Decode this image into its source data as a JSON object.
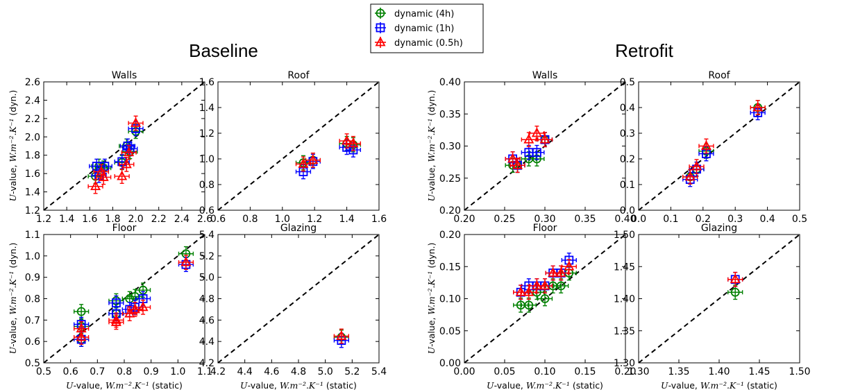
{
  "legend": [
    {
      "label": "dynamic (4h)",
      "color": "#008000",
      "marker": "circle"
    },
    {
      "label": "dynamic (1h)",
      "color": "#0000ff",
      "marker": "square"
    },
    {
      "label": "dynamic (0.5h)",
      "color": "#ff0000",
      "marker": "triangle"
    }
  ],
  "groups": [
    {
      "title": "Baseline"
    },
    {
      "title": "Retrofit"
    }
  ],
  "axis_labels": {
    "y_prefix": "U",
    "y_mid": "-value, ",
    "y_math": "W.m⁻².K⁻¹",
    "y_suffix": " (dyn.)",
    "x_prefix": "U",
    "x_mid": "-value, ",
    "x_math": "W.m⁻².K⁻¹",
    "x_suffix": " (static)"
  },
  "chart_data": [
    {
      "type": "scatter",
      "group": "Baseline",
      "title": "Walls",
      "xlim": [
        1.2,
        2.6
      ],
      "ylim": [
        1.2,
        2.6
      ],
      "xticks": [
        "1.2",
        "1.4",
        "1.6",
        "1.8",
        "2.0",
        "2.2",
        "2.4",
        "2.6"
      ],
      "yticks": [
        "1.2",
        "1.4",
        "1.6",
        "1.8",
        "2.0",
        "2.2",
        "2.4",
        "2.6"
      ],
      "series": [
        {
          "name": "dynamic (4h)",
          "points": [
            [
              1.68,
              1.68
            ],
            [
              1.72,
              1.66
            ],
            [
              1.88,
              1.72
            ],
            [
              1.92,
              1.9
            ],
            [
              1.95,
              1.84
            ],
            [
              2.0,
              2.06
            ],
            [
              1.65,
              1.57
            ]
          ]
        },
        {
          "name": "dynamic (1h)",
          "points": [
            [
              1.66,
              1.68
            ],
            [
              1.73,
              1.68
            ],
            [
              1.88,
              1.73
            ],
            [
              1.93,
              1.9
            ],
            [
              1.95,
              1.87
            ],
            [
              2.0,
              2.09
            ],
            [
              1.68,
              1.58
            ]
          ]
        },
        {
          "name": "dynamic (0.5h)",
          "points": [
            [
              1.65,
              1.46
            ],
            [
              1.72,
              1.56
            ],
            [
              1.88,
              1.57
            ],
            [
              1.92,
              1.7
            ],
            [
              1.94,
              1.83
            ],
            [
              2.0,
              2.15
            ],
            [
              1.7,
              1.62
            ]
          ]
        }
      ]
    },
    {
      "type": "scatter",
      "group": "Baseline",
      "title": "Roof",
      "xlim": [
        0.6,
        1.6
      ],
      "ylim": [
        0.6,
        1.6
      ],
      "xticks": [
        "0.6",
        "0.8",
        "1.0",
        "1.2",
        "1.4",
        "1.6"
      ],
      "yticks": [
        "0.6",
        "0.8",
        "1.0",
        "1.2",
        "1.4",
        "1.6"
      ],
      "series": [
        {
          "name": "dynamic (4h)",
          "points": [
            [
              1.13,
              0.97
            ],
            [
              1.19,
              0.99
            ],
            [
              1.4,
              1.12
            ],
            [
              1.44,
              1.11
            ]
          ]
        },
        {
          "name": "dynamic (1h)",
          "points": [
            [
              1.13,
              0.9
            ],
            [
              1.19,
              0.98
            ],
            [
              1.4,
              1.09
            ],
            [
              1.44,
              1.07
            ]
          ]
        },
        {
          "name": "dynamic (0.5h)",
          "points": [
            [
              1.13,
              0.96
            ],
            [
              1.19,
              0.99
            ],
            [
              1.4,
              1.14
            ],
            [
              1.44,
              1.12
            ]
          ]
        }
      ]
    },
    {
      "type": "scatter",
      "group": "Retrofit",
      "title": "Walls",
      "xlim": [
        0.2,
        0.4
      ],
      "ylim": [
        0.2,
        0.4
      ],
      "xticks": [
        "0.20",
        "0.25",
        "0.30",
        "0.35",
        "0.40"
      ],
      "yticks": [
        "0.20",
        "0.25",
        "0.30",
        "0.35",
        "0.40"
      ],
      "series": [
        {
          "name": "dynamic (4h)",
          "points": [
            [
              0.26,
              0.27
            ],
            [
              0.266,
              0.27
            ],
            [
              0.28,
              0.28
            ],
            [
              0.29,
              0.28
            ],
            [
              0.3,
              0.31
            ]
          ]
        },
        {
          "name": "dynamic (1h)",
          "points": [
            [
              0.26,
              0.28
            ],
            [
              0.266,
              0.27
            ],
            [
              0.28,
              0.29
            ],
            [
              0.29,
              0.29
            ],
            [
              0.3,
              0.31
            ]
          ]
        },
        {
          "name": "dynamic (0.5h)",
          "points": [
            [
              0.26,
              0.28
            ],
            [
              0.266,
              0.27
            ],
            [
              0.28,
              0.31
            ],
            [
              0.29,
              0.32
            ],
            [
              0.3,
              0.31
            ]
          ]
        }
      ]
    },
    {
      "type": "scatter",
      "group": "Retrofit",
      "title": "Roof",
      "xlim": [
        0.0,
        0.5
      ],
      "ylim": [
        0.0,
        0.5
      ],
      "xticks": [
        "0.0",
        "0.1",
        "0.2",
        "0.3",
        "0.4",
        "0.5"
      ],
      "yticks": [
        "0.0",
        "0.1",
        "0.2",
        "0.3",
        "0.4",
        "0.5"
      ],
      "series": [
        {
          "name": "dynamic (4h)",
          "points": [
            [
              0.16,
              0.13
            ],
            [
              0.18,
              0.16
            ],
            [
              0.21,
              0.23
            ],
            [
              0.37,
              0.4
            ]
          ]
        },
        {
          "name": "dynamic (1h)",
          "points": [
            [
              0.16,
              0.12
            ],
            [
              0.18,
              0.16
            ],
            [
              0.21,
              0.22
            ],
            [
              0.37,
              0.38
            ]
          ]
        },
        {
          "name": "dynamic (0.5h)",
          "points": [
            [
              0.16,
              0.13
            ],
            [
              0.18,
              0.17
            ],
            [
              0.21,
              0.25
            ],
            [
              0.37,
              0.4
            ]
          ]
        }
      ]
    },
    {
      "type": "scatter",
      "group": "Baseline",
      "title": "Floor",
      "xlim": [
        0.5,
        1.1
      ],
      "ylim": [
        0.5,
        1.1
      ],
      "xticks": [
        "0.5",
        "0.6",
        "0.7",
        "0.8",
        "0.9",
        "1.0",
        "1.1"
      ],
      "yticks": [
        "0.5",
        "0.6",
        "0.7",
        "0.8",
        "0.9",
        "1.0",
        "1.1"
      ],
      "series": [
        {
          "name": "dynamic (4h)",
          "points": [
            [
              0.64,
              0.74
            ],
            [
              0.64,
              0.67
            ],
            [
              0.64,
              0.61
            ],
            [
              0.77,
              0.79
            ],
            [
              0.82,
              0.8
            ],
            [
              0.84,
              0.81
            ],
            [
              0.87,
              0.84
            ],
            [
              1.03,
              1.01
            ],
            [
              0.77,
              0.73
            ]
          ]
        },
        {
          "name": "dynamic (1h)",
          "points": [
            [
              0.64,
              0.68
            ],
            [
              0.64,
              0.61
            ],
            [
              0.77,
              0.73
            ],
            [
              0.82,
              0.75
            ],
            [
              0.84,
              0.76
            ],
            [
              0.87,
              0.8
            ],
            [
              1.03,
              0.96
            ],
            [
              0.77,
              0.78
            ]
          ]
        },
        {
          "name": "dynamic (0.5h)",
          "points": [
            [
              0.64,
              0.66
            ],
            [
              0.64,
              0.62
            ],
            [
              0.77,
              0.69
            ],
            [
              0.82,
              0.73
            ],
            [
              0.84,
              0.75
            ],
            [
              0.87,
              0.76
            ],
            [
              1.03,
              0.97
            ],
            [
              0.77,
              0.7
            ]
          ]
        }
      ]
    },
    {
      "type": "scatter",
      "group": "Baseline",
      "title": "Glazing",
      "xlim": [
        4.2,
        5.4
      ],
      "ylim": [
        4.2,
        5.4
      ],
      "xticks": [
        "4.2",
        "4.4",
        "4.6",
        "4.8",
        "5.0",
        "5.2",
        "5.4"
      ],
      "yticks": [
        "4.2",
        "4.4",
        "4.6",
        "4.8",
        "5.0",
        "5.2",
        "5.4"
      ],
      "series": [
        {
          "name": "dynamic (4h)",
          "points": [
            [
              5.12,
              4.44
            ]
          ]
        },
        {
          "name": "dynamic (1h)",
          "points": [
            [
              5.12,
              4.41
            ]
          ]
        },
        {
          "name": "dynamic (0.5h)",
          "points": [
            [
              5.12,
              4.45
            ]
          ]
        }
      ]
    },
    {
      "type": "scatter",
      "group": "Retrofit",
      "title": "Floor",
      "xlim": [
        0.0,
        0.2
      ],
      "ylim": [
        0.0,
        0.2
      ],
      "xticks": [
        "0.00",
        "0.05",
        "0.10",
        "0.15",
        "0.20"
      ],
      "yticks": [
        "0.00",
        "0.05",
        "0.10",
        "0.15",
        "0.20"
      ],
      "series": [
        {
          "name": "dynamic (4h)",
          "points": [
            [
              0.07,
              0.09
            ],
            [
              0.08,
              0.09
            ],
            [
              0.09,
              0.11
            ],
            [
              0.1,
              0.1
            ],
            [
              0.11,
              0.12
            ],
            [
              0.12,
              0.12
            ],
            [
              0.13,
              0.14
            ]
          ]
        },
        {
          "name": "dynamic (1h)",
          "points": [
            [
              0.07,
              0.11
            ],
            [
              0.08,
              0.12
            ],
            [
              0.09,
              0.12
            ],
            [
              0.1,
              0.12
            ],
            [
              0.11,
              0.14
            ],
            [
              0.12,
              0.14
            ],
            [
              0.13,
              0.16
            ]
          ]
        },
        {
          "name": "dynamic (0.5h)",
          "points": [
            [
              0.07,
              0.11
            ],
            [
              0.08,
              0.11
            ],
            [
              0.09,
              0.12
            ],
            [
              0.1,
              0.12
            ],
            [
              0.11,
              0.14
            ],
            [
              0.12,
              0.14
            ],
            [
              0.13,
              0.15
            ]
          ]
        }
      ]
    },
    {
      "type": "scatter",
      "group": "Retrofit",
      "title": "Glazing",
      "xlim": [
        1.3,
        1.5
      ],
      "ylim": [
        1.3,
        1.5
      ],
      "xticks": [
        "1.30",
        "1.35",
        "1.40",
        "1.45",
        "1.50"
      ],
      "yticks": [
        "1.30",
        "1.35",
        "1.40",
        "1.45",
        "1.50"
      ],
      "series": [
        {
          "name": "dynamic (4h)",
          "points": [
            [
              1.42,
              1.41
            ]
          ]
        },
        {
          "name": "dynamic (1h)",
          "points": [
            [
              1.42,
              1.43
            ]
          ]
        },
        {
          "name": "dynamic (0.5h)",
          "points": [
            [
              1.42,
              1.43
            ]
          ]
        }
      ]
    }
  ]
}
